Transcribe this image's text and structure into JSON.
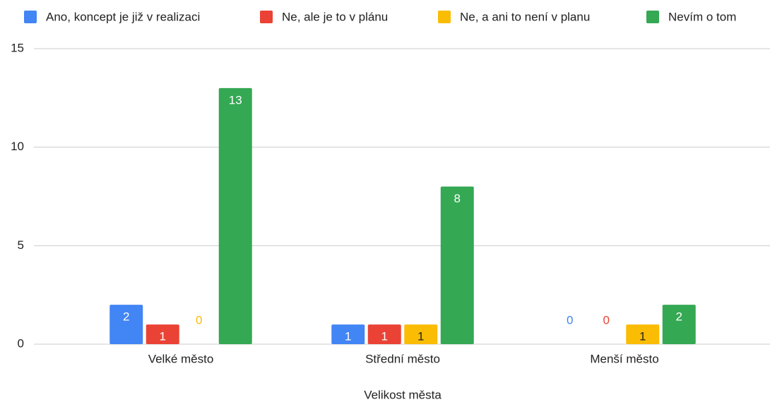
{
  "chart_data": {
    "type": "bar",
    "x_label": "Velikost města",
    "categories": [
      "Velké město",
      "Střední město",
      "Menší město"
    ],
    "series": [
      {
        "name": "Ano, koncept je již v realizaci",
        "color": "#4285f4",
        "values": [
          2,
          1,
          0
        ]
      },
      {
        "name": "Ne, ale je to v plánu",
        "color": "#ea4335",
        "values": [
          1,
          1,
          0
        ]
      },
      {
        "name": "Ne, a ani to není v planu",
        "color": "#fbbc04",
        "values": [
          0,
          1,
          1
        ]
      },
      {
        "name": "Nevím o tom",
        "color": "#34a853",
        "values": [
          13,
          8,
          2
        ]
      }
    ],
    "ylim": [
      0,
      15
    ],
    "yticks": [
      0,
      5,
      10,
      15
    ],
    "grid": true,
    "legend": "top"
  }
}
